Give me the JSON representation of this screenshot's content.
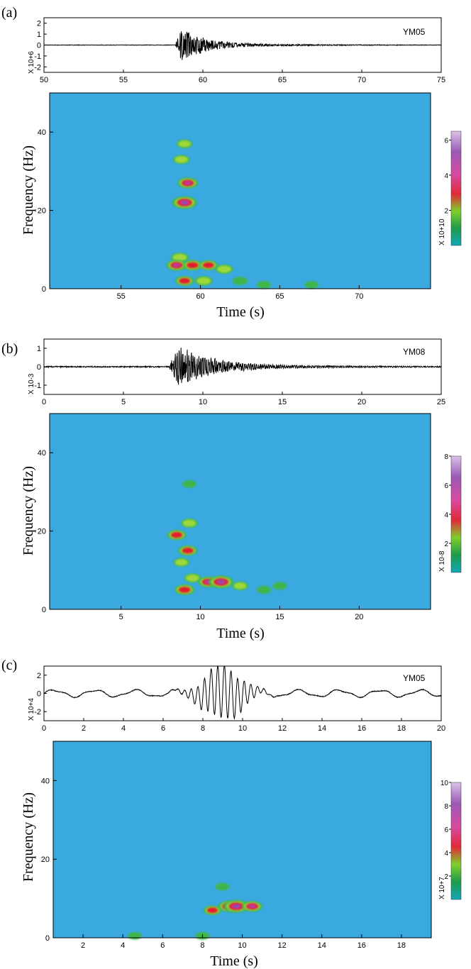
{
  "figure": {
    "colors": {
      "background": "#3aa9e0",
      "trace": "#000000",
      "colorbar": [
        "#12a8b8",
        "#1e9a4a",
        "#7fcf2a",
        "#e02a3a",
        "#d84aa0",
        "#9b59b6",
        "#c9a6d8"
      ],
      "hotspot_green": "#3fb54a",
      "hotspot_yellowgreen": "#9ed83a",
      "hotspot_red": "#e21c2c",
      "hotspot_magenta": "#c2399a",
      "hotspot_purple": "#7a56b4"
    }
  },
  "panels": [
    {
      "label": "(a)",
      "station": "YM05",
      "wave_scale": "X 10+6",
      "wave_yticks": [
        "-2",
        "-1",
        "0",
        "1",
        "2"
      ],
      "wave_xticks": [
        "50",
        "55",
        "60",
        "65",
        "70",
        "75"
      ],
      "spec_yticks": [
        "0",
        "20",
        "40"
      ],
      "spec_xticks": [
        "55",
        "60",
        "65",
        "70"
      ],
      "cb_ticks": [
        "2",
        "4",
        "6"
      ],
      "cb_scale": "X 10+10",
      "ylabel": "Frequency (Hz)",
      "xlabel": "Time (s)"
    },
    {
      "label": "(b)",
      "station": "YM08",
      "wave_scale": "X 10-3",
      "wave_yticks": [
        "-1",
        "0",
        "1"
      ],
      "wave_xticks": [
        "0",
        "5",
        "10",
        "15",
        "20",
        "25"
      ],
      "spec_yticks": [
        "0",
        "20",
        "40"
      ],
      "spec_xticks": [
        "5",
        "10",
        "15",
        "20"
      ],
      "cb_ticks": [
        "2",
        "4",
        "6",
        "8"
      ],
      "cb_scale": "X 10-8",
      "ylabel": "Frequency (Hz)",
      "xlabel": "Time (s)"
    },
    {
      "label": "(c)",
      "station": "YM05",
      "wave_scale": "X 10+4",
      "wave_yticks": [
        "-2",
        "0",
        "2"
      ],
      "wave_xticks": [
        "0",
        "2",
        "4",
        "6",
        "8",
        "10",
        "12",
        "14",
        "16",
        "18",
        "20"
      ],
      "spec_yticks": [
        "0",
        "20",
        "40"
      ],
      "spec_xticks": [
        "2",
        "4",
        "6",
        "8",
        "10",
        "12",
        "14",
        "16",
        "18"
      ],
      "cb_ticks": [
        "2",
        "4",
        "6",
        "8",
        "10"
      ],
      "cb_scale": "X 10+7",
      "ylabel": "Frequency (Hz)",
      "xlabel": "Time (s)"
    }
  ],
  "chart_data": [
    {
      "type": "line",
      "panel": "(a)",
      "station": "YM05",
      "x_range": [
        50,
        75
      ],
      "y_range": [
        -2.5,
        2.5
      ],
      "units_scale": "X 10+6",
      "onset_s": 58.3,
      "peak_abs": 2.0,
      "peak_time_s": 59.2
    },
    {
      "type": "heatmap",
      "panel": "(a)",
      "xlabel": "Time (s)",
      "ylabel": "Frequency (Hz)",
      "x_range": [
        50.5,
        74.5
      ],
      "y_range": [
        0,
        50
      ],
      "colorbar_range": [
        0,
        6.5
      ],
      "colorbar_scale": "X 10+10",
      "hotspots": [
        {
          "t": 59.0,
          "f": 22,
          "level": 6.2
        },
        {
          "t": 59.2,
          "f": 27,
          "level": 4.0
        },
        {
          "t": 58.8,
          "f": 33,
          "level": 2.0
        },
        {
          "t": 59.0,
          "f": 37,
          "level": 1.6
        },
        {
          "t": 58.7,
          "f": 8,
          "level": 2.5
        },
        {
          "t": 58.5,
          "f": 6,
          "level": 4.0
        },
        {
          "t": 59.5,
          "f": 6,
          "level": 3.5
        },
        {
          "t": 60.5,
          "f": 6,
          "level": 3.0
        },
        {
          "t": 61.5,
          "f": 5,
          "level": 2.5
        },
        {
          "t": 59.0,
          "f": 2,
          "level": 3.0
        },
        {
          "t": 60.2,
          "f": 2,
          "level": 2.5
        },
        {
          "t": 62.5,
          "f": 2,
          "level": 1.2
        },
        {
          "t": 64.0,
          "f": 1,
          "level": 0.6
        },
        {
          "t": 67.0,
          "f": 1,
          "level": 0.5
        }
      ]
    },
    {
      "type": "line",
      "panel": "(b)",
      "station": "YM08",
      "x_range": [
        0,
        25
      ],
      "y_range": [
        -1.5,
        1.5
      ],
      "units_scale": "X 10-3",
      "onset_s": 7.9,
      "peak_abs": 1.5,
      "peak_time_s": 9.3
    },
    {
      "type": "heatmap",
      "panel": "(b)",
      "xlabel": "Time (s)",
      "ylabel": "Frequency (Hz)",
      "x_range": [
        0.5,
        24.5
      ],
      "y_range": [
        0,
        50
      ],
      "colorbar_range": [
        0,
        8
      ],
      "colorbar_scale": "X 10-8",
      "hotspots": [
        {
          "t": 8.5,
          "f": 19,
          "level": 4.0
        },
        {
          "t": 9.3,
          "f": 22,
          "level": 2.5
        },
        {
          "t": 9.2,
          "f": 15,
          "level": 4.0
        },
        {
          "t": 8.8,
          "f": 12,
          "level": 2.0
        },
        {
          "t": 9.5,
          "f": 8,
          "level": 2.5
        },
        {
          "t": 10.5,
          "f": 7,
          "level": 5.0
        },
        {
          "t": 11.3,
          "f": 7,
          "level": 7.5
        },
        {
          "t": 9.0,
          "f": 5,
          "level": 4.5
        },
        {
          "t": 12.5,
          "f": 6,
          "level": 2.0
        },
        {
          "t": 14.0,
          "f": 5,
          "level": 1.2
        },
        {
          "t": 15.0,
          "f": 6,
          "level": 0.8
        },
        {
          "t": 9.3,
          "f": 32,
          "level": 0.8
        }
      ]
    },
    {
      "type": "line",
      "panel": "(c)",
      "station": "YM05",
      "x_range": [
        0,
        20
      ],
      "y_range": [
        -3,
        3
      ],
      "units_scale": "X 10+4",
      "onset_s": 7.0,
      "peak_abs": 2.9,
      "peak_time_s": 10.0
    },
    {
      "type": "heatmap",
      "panel": "(c)",
      "xlabel": "Time (s)",
      "ylabel": "Frequency (Hz)",
      "x_range": [
        0.5,
        19.5
      ],
      "y_range": [
        0,
        50
      ],
      "colorbar_range": [
        0,
        10
      ],
      "colorbar_scale": "X 10+7",
      "hotspots": [
        {
          "t": 9.3,
          "f": 8,
          "level": 6.0
        },
        {
          "t": 9.7,
          "f": 8,
          "level": 9.5
        },
        {
          "t": 10.5,
          "f": 8,
          "level": 6.0
        },
        {
          "t": 8.5,
          "f": 7,
          "level": 4.0
        },
        {
          "t": 9.0,
          "f": 13,
          "level": 1.0
        },
        {
          "t": 4.6,
          "f": 0.5,
          "level": 0.8
        },
        {
          "t": 8.0,
          "f": 0.5,
          "level": 1.0
        }
      ]
    }
  ]
}
